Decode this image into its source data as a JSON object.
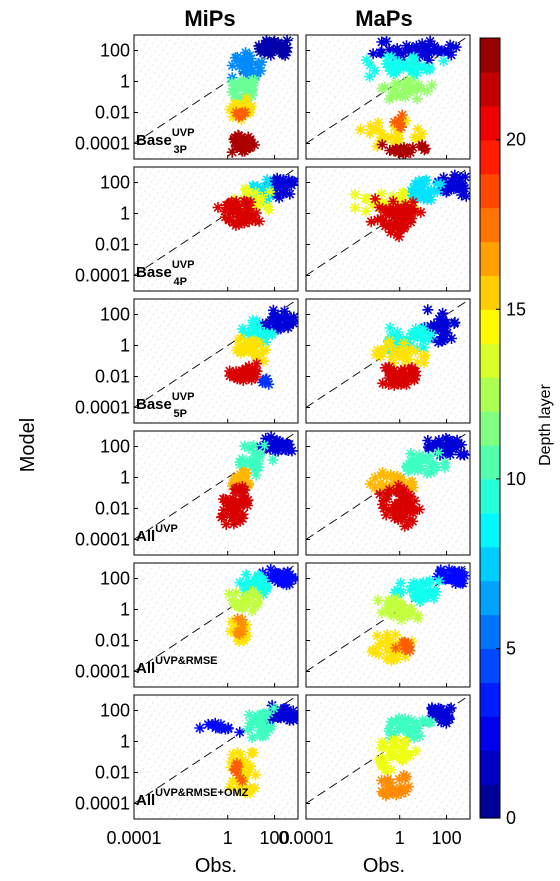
{
  "chart_data": {
    "type": "scatter",
    "column_titles": [
      "MiPs",
      "MaPs"
    ],
    "row_labels": [
      {
        "base": "Base",
        "sup": "UVP",
        "sub": "3P"
      },
      {
        "base": "Base",
        "sup": "UVP",
        "sub": "4P"
      },
      {
        "base": "Base",
        "sup": "UVP",
        "sub": "5P"
      },
      {
        "base": "All",
        "sup": "UVP",
        "sub": ""
      },
      {
        "base": "All",
        "sup": "UVP&RMSE",
        "sub": ""
      },
      {
        "base": "All",
        "sup": "UVP&RMSE+OMZ",
        "sub": ""
      }
    ],
    "xlabel": "Obs.",
    "ylabel": "Model",
    "axis_scale": "log",
    "xlim": [
      0.0001,
      1000
    ],
    "ylim": [
      1e-05,
      1000
    ],
    "x_ticks": [
      {
        "v": 0.0001,
        "label": "0.0001"
      },
      {
        "v": 1,
        "label": "1"
      },
      {
        "v": 100,
        "label": "100"
      }
    ],
    "y_ticks": [
      {
        "v": 0.0001,
        "label": "0.0001"
      },
      {
        "v": 0.01,
        "label": "0.01"
      },
      {
        "v": 1,
        "label": "1"
      },
      {
        "v": 100,
        "label": "100"
      }
    ],
    "one_to_one_line": true,
    "colorbar": {
      "label": "Depth layer",
      "range": [
        0,
        23
      ],
      "ticks": [
        {
          "v": 0,
          "label": "0"
        },
        {
          "v": 5,
          "label": "5"
        },
        {
          "v": 10,
          "label": "10"
        },
        {
          "v": 15,
          "label": "15"
        },
        {
          "v": 20,
          "label": "20"
        }
      ],
      "colormap": "jet",
      "levels": 23
    },
    "panels": [
      {
        "row": 0,
        "col": 0,
        "clusters": [
          {
            "depth": 1,
            "x": [
              10,
              1000
            ],
            "y": [
              30,
              600
            ],
            "n": 40
          },
          {
            "depth": 6,
            "x": [
              1,
              50
            ],
            "y": [
              1,
              100
            ],
            "n": 30
          },
          {
            "depth": 11,
            "x": [
              1,
              20
            ],
            "y": [
              0.05,
              3
            ],
            "n": 30
          },
          {
            "depth": 15,
            "x": [
              1,
              15
            ],
            "y": [
              0.002,
              0.1
            ],
            "n": 25
          },
          {
            "depth": 18,
            "x": [
              2,
              8
            ],
            "y": [
              0.003,
              0.02
            ],
            "n": 8
          },
          {
            "depth": 22,
            "x": [
              1,
              15
            ],
            "y": [
              2e-05,
              0.0004
            ],
            "n": 35
          }
        ]
      },
      {
        "row": 0,
        "col": 1,
        "clusters": [
          {
            "depth": 2,
            "x": [
              0.05,
              1000
            ],
            "y": [
              20,
              600
            ],
            "n": 45
          },
          {
            "depth": 9,
            "x": [
              0.03,
              100
            ],
            "y": [
              1,
              60
            ],
            "n": 40
          },
          {
            "depth": 12,
            "x": [
              0.1,
              30
            ],
            "y": [
              0.05,
              2
            ],
            "n": 30
          },
          {
            "depth": 15,
            "x": [
              0.01,
              20
            ],
            "y": [
              5e-05,
              0.005
            ],
            "n": 25
          },
          {
            "depth": 18,
            "x": [
              0.5,
              3
            ],
            "y": [
              0.001,
              0.01
            ],
            "n": 6
          },
          {
            "depth": 22,
            "x": [
              0.1,
              20
            ],
            "y": [
              2e-05,
              0.0001
            ],
            "n": 20
          }
        ]
      },
      {
        "row": 1,
        "col": 0,
        "clusters": [
          {
            "depth": 2,
            "x": [
              20,
              1000
            ],
            "y": [
              10,
              300
            ],
            "n": 35
          },
          {
            "depth": 8,
            "x": [
              5,
              200
            ],
            "y": [
              5,
              200
            ],
            "n": 25
          },
          {
            "depth": 14,
            "x": [
              1,
              100
            ],
            "y": [
              0.5,
              50
            ],
            "n": 25
          },
          {
            "depth": 21,
            "x": [
              0.3,
              30
            ],
            "y": [
              0.1,
              10
            ],
            "n": 45
          }
        ]
      },
      {
        "row": 1,
        "col": 1,
        "clusters": [
          {
            "depth": 2,
            "x": [
              30,
              1000
            ],
            "y": [
              10,
              500
            ],
            "n": 35
          },
          {
            "depth": 8,
            "x": [
              1,
              100
            ],
            "y": [
              5,
              200
            ],
            "n": 30
          },
          {
            "depth": 14,
            "x": [
              0.01,
              10
            ],
            "y": [
              0.5,
              30
            ],
            "n": 30
          },
          {
            "depth": 21,
            "x": [
              0.05,
              10
            ],
            "y": [
              0.02,
              10
            ],
            "n": 55
          }
        ]
      },
      {
        "row": 2,
        "col": 0,
        "clusters": [
          {
            "depth": 2,
            "x": [
              20,
              1000
            ],
            "y": [
              3,
              300
            ],
            "n": 30
          },
          {
            "depth": 9,
            "x": [
              3,
              100
            ],
            "y": [
              0.5,
              50
            ],
            "n": 30
          },
          {
            "depth": 15,
            "x": [
              1,
              50
            ],
            "y": [
              0.05,
              5
            ],
            "n": 30
          },
          {
            "depth": 21,
            "x": [
              1,
              30
            ],
            "y": [
              0.003,
              0.1
            ],
            "n": 35
          },
          {
            "depth": 4,
            "x": [
              20,
              80
            ],
            "y": [
              0.002,
              0.01
            ],
            "n": 5
          }
        ]
      },
      {
        "row": 2,
        "col": 1,
        "clusters": [
          {
            "depth": 2,
            "x": [
              10,
              300
            ],
            "y": [
              1,
              300
            ],
            "n": 30
          },
          {
            "depth": 9,
            "x": [
              0.1,
              50
            ],
            "y": [
              0.3,
              30
            ],
            "n": 35
          },
          {
            "depth": 15,
            "x": [
              0.05,
              20
            ],
            "y": [
              0.03,
              3
            ],
            "n": 30
          },
          {
            "depth": 21,
            "x": [
              0.1,
              10
            ],
            "y": [
              0.002,
              0.05
            ],
            "n": 40
          }
        ]
      },
      {
        "row": 3,
        "col": 0,
        "clusters": [
          {
            "depth": 2,
            "x": [
              20,
              1000
            ],
            "y": [
              20,
              500
            ],
            "n": 35
          },
          {
            "depth": 10,
            "x": [
              2,
              100
            ],
            "y": [
              1,
              200
            ],
            "n": 25
          },
          {
            "depth": 16,
            "x": [
              1,
              20
            ],
            "y": [
              0.1,
              5
            ],
            "n": 25
          },
          {
            "depth": 21,
            "x": [
              0.5,
              10
            ],
            "y": [
              0.0005,
              0.5
            ],
            "n": 45
          }
        ]
      },
      {
        "row": 3,
        "col": 1,
        "clusters": [
          {
            "depth": 2,
            "x": [
              10,
              1000
            ],
            "y": [
              20,
              500
            ],
            "n": 35
          },
          {
            "depth": 10,
            "x": [
              0.5,
              100
            ],
            "y": [
              1,
              100
            ],
            "n": 30
          },
          {
            "depth": 16,
            "x": [
              0.05,
              10
            ],
            "y": [
              0.05,
              5
            ],
            "n": 30
          },
          {
            "depth": 21,
            "x": [
              0.1,
              10
            ],
            "y": [
              0.0005,
              0.5
            ],
            "n": 55
          }
        ]
      },
      {
        "row": 4,
        "col": 0,
        "clusters": [
          {
            "depth": 3,
            "x": [
              30,
              1000
            ],
            "y": [
              30,
              500
            ],
            "n": 30
          },
          {
            "depth": 9,
            "x": [
              3,
              100
            ],
            "y": [
              5,
              200
            ],
            "n": 30
          },
          {
            "depth": 13,
            "x": [
              1,
              30
            ],
            "y": [
              0.5,
              30
            ],
            "n": 25
          },
          {
            "depth": 15,
            "x": [
              1,
              10
            ],
            "y": [
              0.005,
              0.5
            ],
            "n": 25
          },
          {
            "depth": 17,
            "x": [
              2,
              6
            ],
            "y": [
              0.01,
              0.5
            ],
            "n": 8
          }
        ]
      },
      {
        "row": 4,
        "col": 1,
        "clusters": [
          {
            "depth": 3,
            "x": [
              30,
              1000
            ],
            "y": [
              30,
              500
            ],
            "n": 30
          },
          {
            "depth": 9,
            "x": [
              0.5,
              100
            ],
            "y": [
              3,
              100
            ],
            "n": 35
          },
          {
            "depth": 13,
            "x": [
              0.1,
              10
            ],
            "y": [
              0.1,
              10
            ],
            "n": 30
          },
          {
            "depth": 15,
            "x": [
              0.05,
              5
            ],
            "y": [
              0.0003,
              0.05
            ],
            "n": 30
          },
          {
            "depth": 18,
            "x": [
              0.5,
              5
            ],
            "y": [
              0.001,
              0.02
            ],
            "n": 8
          }
        ]
      },
      {
        "row": 5,
        "col": 0,
        "clusters": [
          {
            "depth": 2,
            "x": [
              30,
              1000
            ],
            "y": [
              10,
              300
            ],
            "n": 35
          },
          {
            "depth": 3,
            "x": [
              0.05,
              5
            ],
            "y": [
              2,
              20
            ],
            "n": 12
          },
          {
            "depth": 10,
            "x": [
              5,
              100
            ],
            "y": [
              1,
              300
            ],
            "n": 30
          },
          {
            "depth": 15,
            "x": [
              1,
              20
            ],
            "y": [
              0.0003,
              0.5
            ],
            "n": 45
          },
          {
            "depth": 18,
            "x": [
              1,
              5
            ],
            "y": [
              0.002,
              0.05
            ],
            "n": 8
          }
        ]
      },
      {
        "row": 5,
        "col": 1,
        "clusters": [
          {
            "depth": 2,
            "x": [
              10,
              300
            ],
            "y": [
              10,
              300
            ],
            "n": 30
          },
          {
            "depth": 10,
            "x": [
              0.1,
              30
            ],
            "y": [
              1,
              100
            ],
            "n": 35
          },
          {
            "depth": 14,
            "x": [
              0.05,
              10
            ],
            "y": [
              0.01,
              3
            ],
            "n": 35
          },
          {
            "depth": 17,
            "x": [
              0.1,
              5
            ],
            "y": [
              0.0002,
              0.01
            ],
            "n": 25
          }
        ]
      }
    ]
  }
}
